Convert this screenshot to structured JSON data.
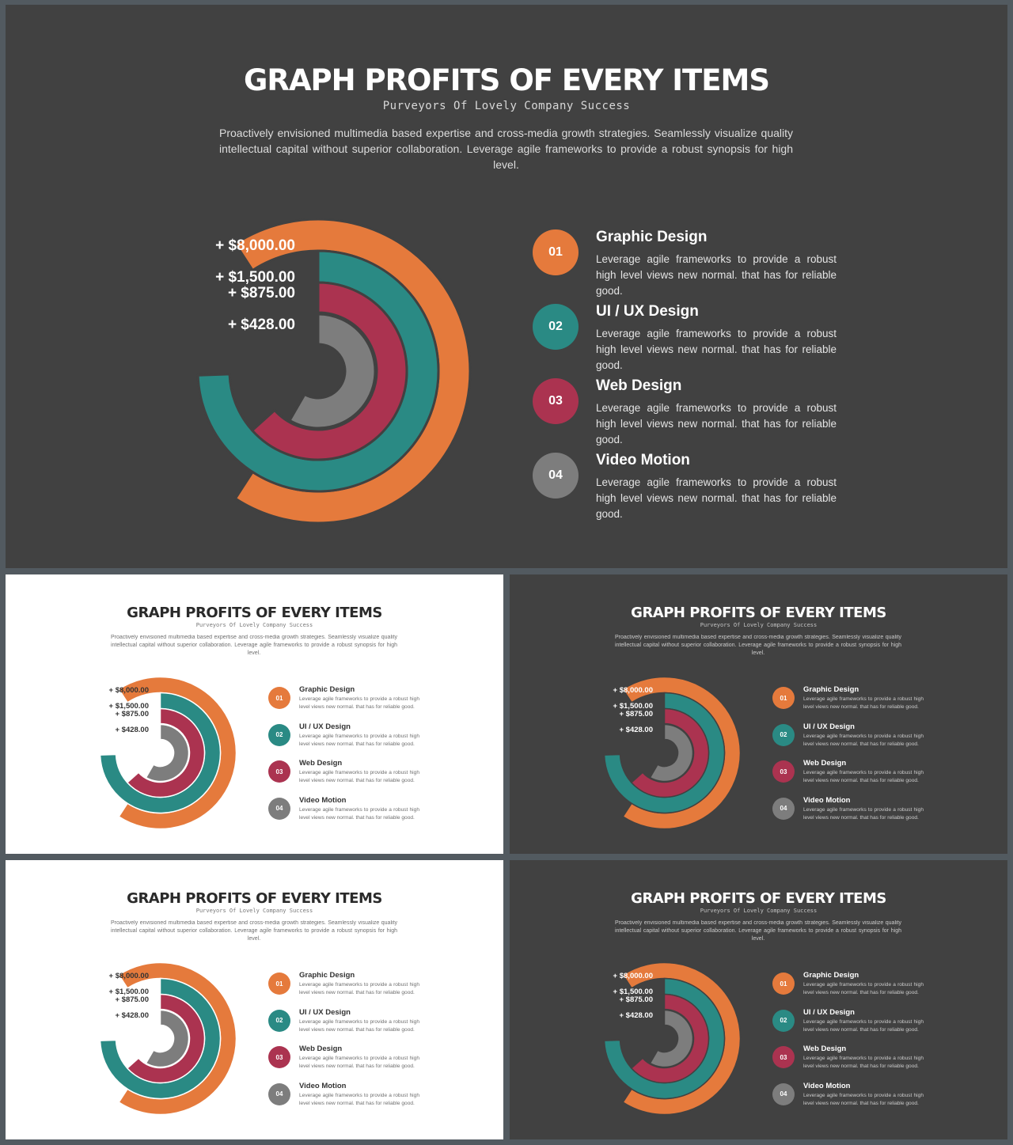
{
  "title": "GRAPH PROFITS OF EVERY ITEMS",
  "subtitle": "Purveyors Of Lovely Company Success",
  "description": "Proactively envisioned multimedia based expertise and cross-media growth strategies. Seamlessly visualize quality intellectual capital without superior collaboration. Leverage agile frameworks to provide a robust synopsis for high level.",
  "items": [
    {
      "number": "01",
      "title": "Graphic Design",
      "desc": "Leverage agile frameworks to provide a robust high level views new normal. that has for reliable good.",
      "color": "#e57a3c"
    },
    {
      "number": "02",
      "title": "UI / UX Design",
      "desc": "Leverage agile frameworks to provide a robust high level views new normal. that has for reliable good.",
      "color": "#2a8a84"
    },
    {
      "number": "03",
      "title": "Web Design",
      "desc": "Leverage agile frameworks to provide a robust high level views new normal. that has for reliable good.",
      "color": "#ab3350"
    },
    {
      "number": "04",
      "title": "Video Motion",
      "desc": "Leverage agile frameworks to provide a robust high level views new normal. that has for reliable good.",
      "color": "#7d7d7d"
    }
  ],
  "chart_data": {
    "type": "radial-bar",
    "series": [
      {
        "name": "Graphic Design",
        "label": "+ $8,000.00",
        "value": 8000,
        "color": "#e57a3c"
      },
      {
        "name": "UI / UX Design",
        "label": "+ $1,500.00",
        "value": 1500,
        "color": "#2a8a84"
      },
      {
        "name": "Web Design",
        "label": "+ $875.00",
        "value": 875,
        "color": "#ab3350"
      },
      {
        "name": "Video Motion",
        "label": "+ $428.00",
        "value": 428,
        "color": "#7d7d7d"
      }
    ]
  },
  "themes": {
    "dark_bg": "#414141",
    "light_bg": "#ffffff",
    "frame": "#525a60"
  }
}
